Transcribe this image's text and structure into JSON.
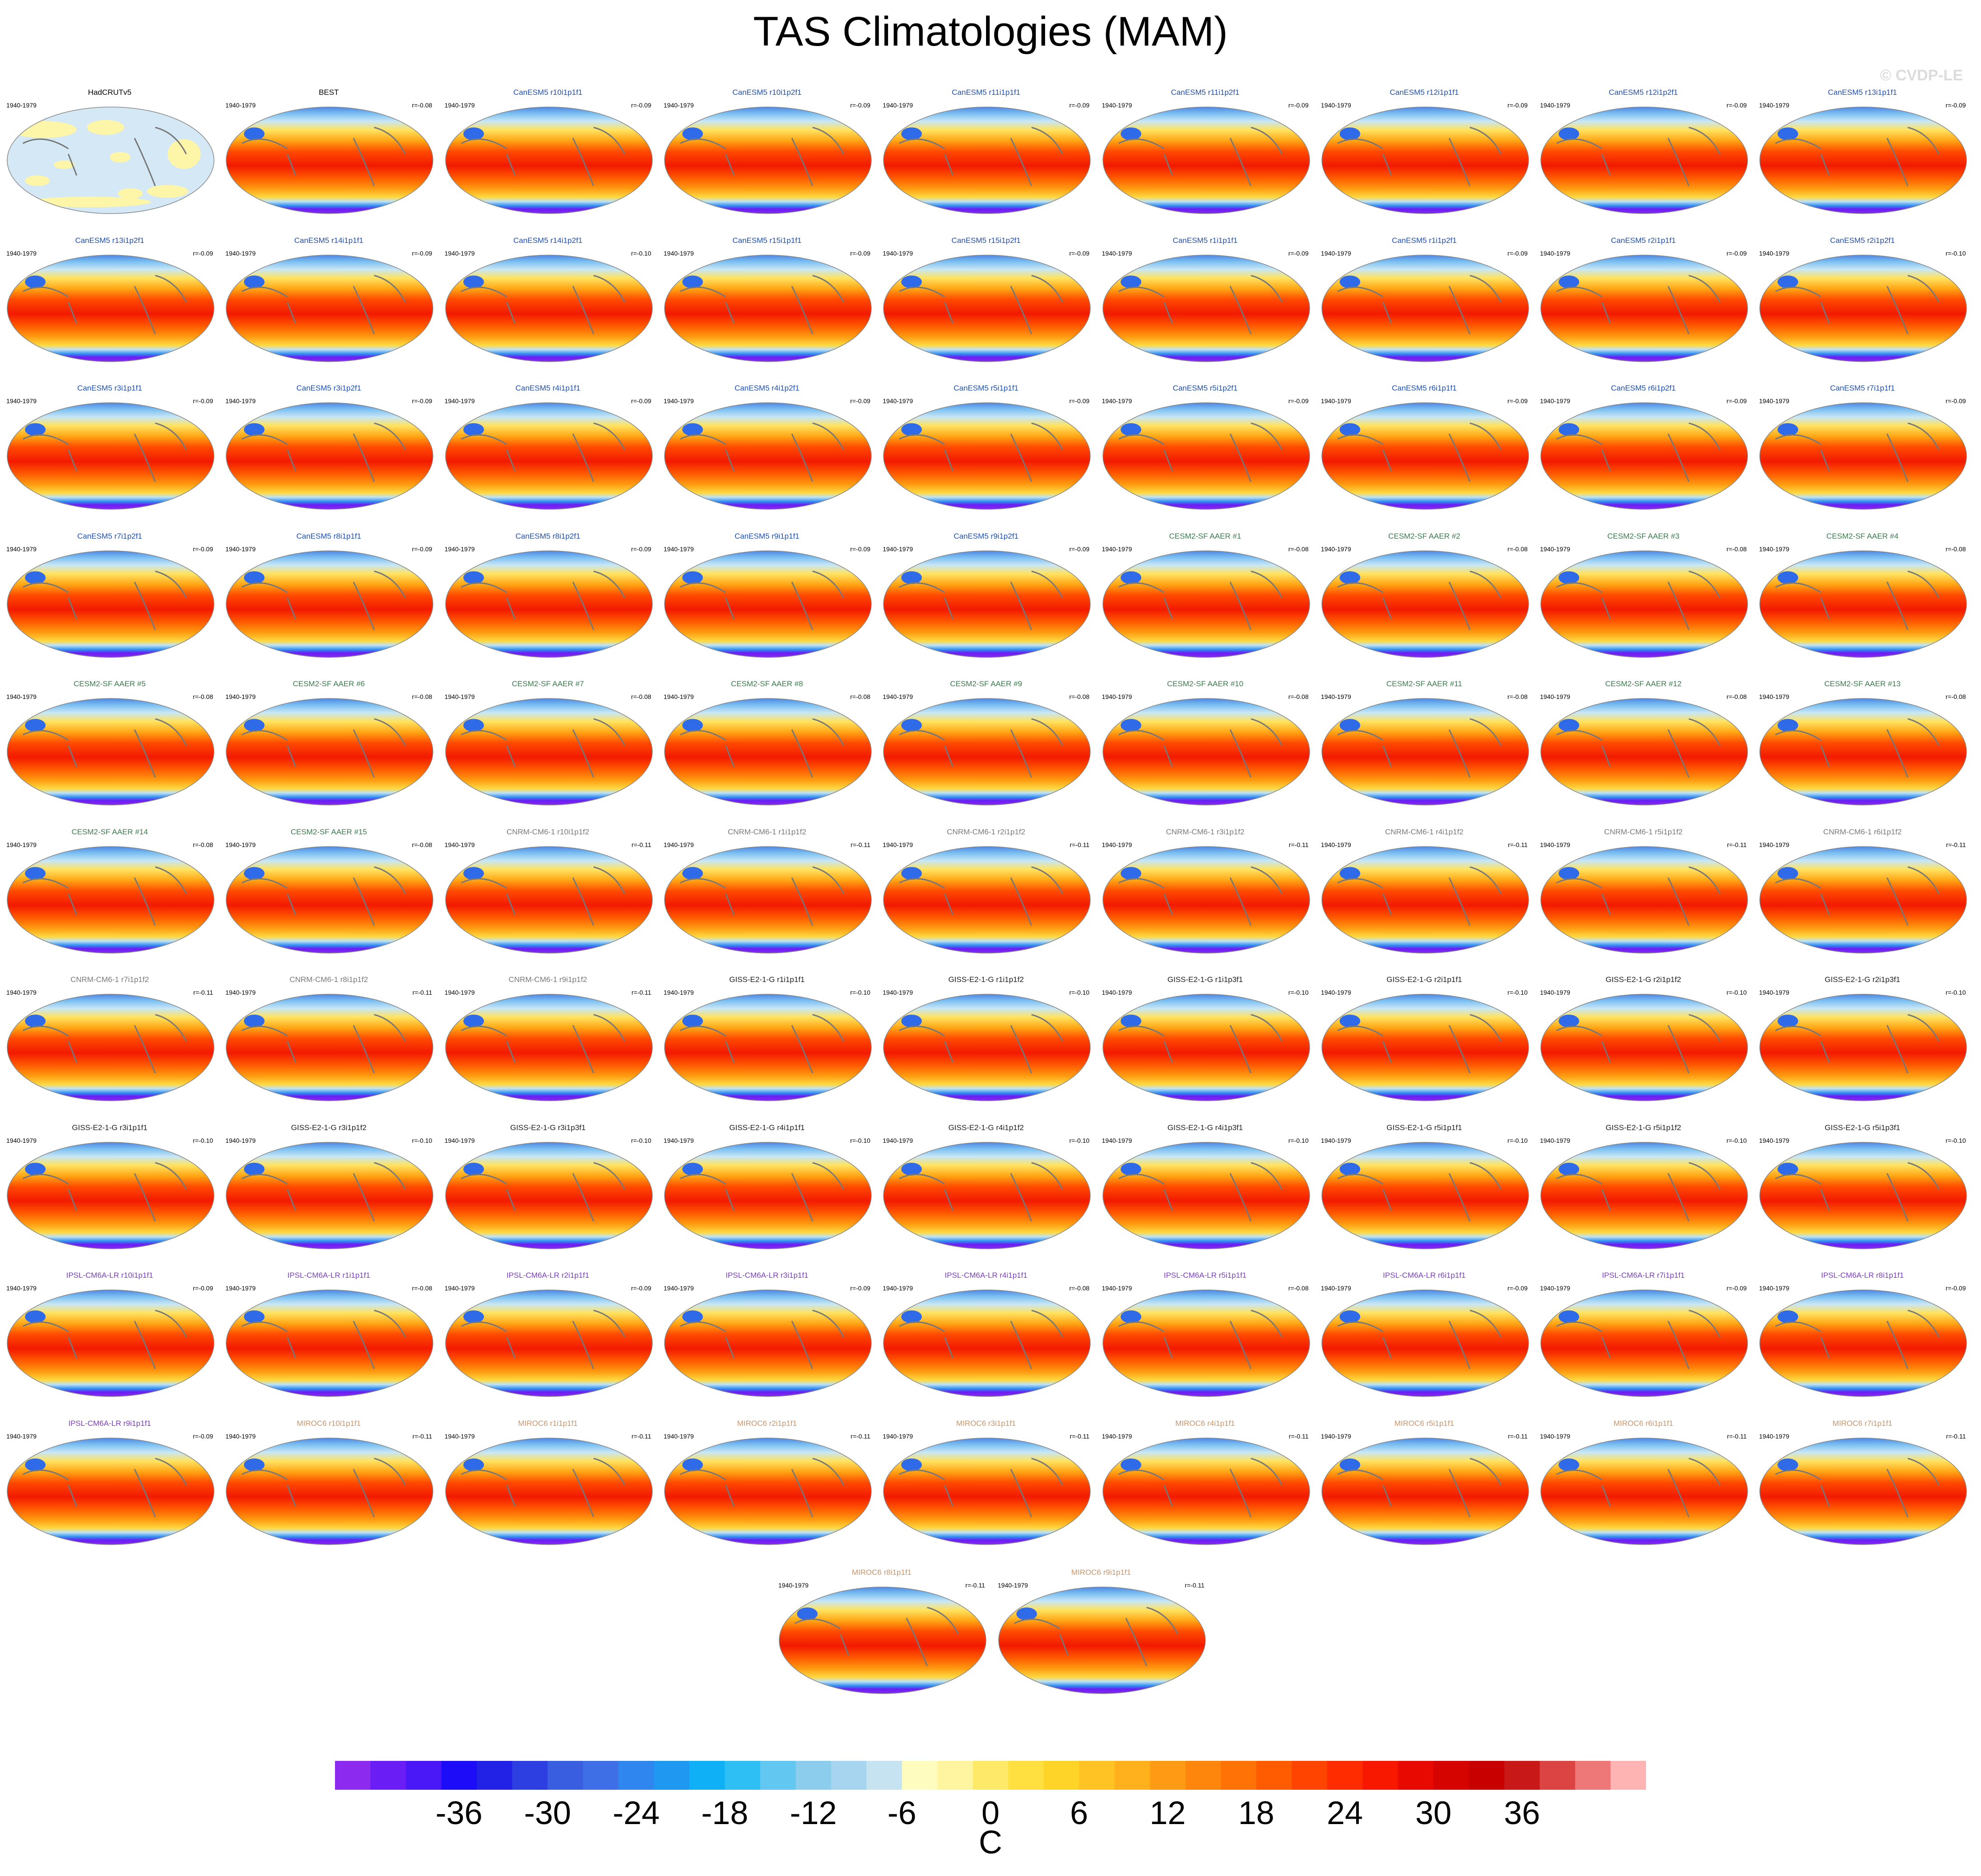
{
  "title": "TAS Climatologies (MAM)",
  "watermark": "© CVDP-LE",
  "panels": [
    {
      "name": "HadCRUTv5",
      "period": "1940-1979",
      "r": "",
      "color": "#000000",
      "kind": "obs"
    },
    {
      "name": "BEST",
      "period": "1940-1979",
      "r": "r=-0.08",
      "color": "#000000",
      "kind": "model"
    },
    {
      "name": "CanESM5 r10i1p1f1",
      "period": "1940-1979",
      "r": "r=-0.09",
      "color": "#1f4fb0",
      "kind": "model"
    },
    {
      "name": "CanESM5 r10i1p2f1",
      "period": "1940-1979",
      "r": "r=-0.09",
      "color": "#1f4fb0",
      "kind": "model"
    },
    {
      "name": "CanESM5 r11i1p1f1",
      "period": "1940-1979",
      "r": "r=-0.09",
      "color": "#1f4fb0",
      "kind": "model"
    },
    {
      "name": "CanESM5 r11i1p2f1",
      "period": "1940-1979",
      "r": "r=-0.09",
      "color": "#1f4fb0",
      "kind": "model"
    },
    {
      "name": "CanESM5 r12i1p1f1",
      "period": "1940-1979",
      "r": "r=-0.09",
      "color": "#1f4fb0",
      "kind": "model"
    },
    {
      "name": "CanESM5 r12i1p2f1",
      "period": "1940-1979",
      "r": "r=-0.09",
      "color": "#1f4fb0",
      "kind": "model"
    },
    {
      "name": "CanESM5 r13i1p1f1",
      "period": "1940-1979",
      "r": "r=-0.09",
      "color": "#1f4fb0",
      "kind": "model"
    },
    {
      "name": "CanESM5 r13i1p2f1",
      "period": "1940-1979",
      "r": "r=-0.09",
      "color": "#1f4fb0",
      "kind": "model"
    },
    {
      "name": "CanESM5 r14i1p1f1",
      "period": "1940-1979",
      "r": "r=-0.09",
      "color": "#1f4fb0",
      "kind": "model"
    },
    {
      "name": "CanESM5 r14i1p2f1",
      "period": "1940-1979",
      "r": "r=-0.10",
      "color": "#1f4fb0",
      "kind": "model"
    },
    {
      "name": "CanESM5 r15i1p1f1",
      "period": "1940-1979",
      "r": "r=-0.09",
      "color": "#1f4fb0",
      "kind": "model"
    },
    {
      "name": "CanESM5 r15i1p2f1",
      "period": "1940-1979",
      "r": "r=-0.09",
      "color": "#1f4fb0",
      "kind": "model"
    },
    {
      "name": "CanESM5 r1i1p1f1",
      "period": "1940-1979",
      "r": "r=-0.09",
      "color": "#1f4fb0",
      "kind": "model"
    },
    {
      "name": "CanESM5 r1i1p2f1",
      "period": "1940-1979",
      "r": "r=-0.09",
      "color": "#1f4fb0",
      "kind": "model"
    },
    {
      "name": "CanESM5 r2i1p1f1",
      "period": "1940-1979",
      "r": "r=-0.09",
      "color": "#1f4fb0",
      "kind": "model"
    },
    {
      "name": "CanESM5 r2i1p2f1",
      "period": "1940-1979",
      "r": "r=-0.10",
      "color": "#1f4fb0",
      "kind": "model"
    },
    {
      "name": "CanESM5 r3i1p1f1",
      "period": "1940-1979",
      "r": "r=-0.09",
      "color": "#1f4fb0",
      "kind": "model"
    },
    {
      "name": "CanESM5 r3i1p2f1",
      "period": "1940-1979",
      "r": "r=-0.09",
      "color": "#1f4fb0",
      "kind": "model"
    },
    {
      "name": "CanESM5 r4i1p1f1",
      "period": "1940-1979",
      "r": "r=-0.09",
      "color": "#1f4fb0",
      "kind": "model"
    },
    {
      "name": "CanESM5 r4i1p2f1",
      "period": "1940-1979",
      "r": "r=-0.09",
      "color": "#1f4fb0",
      "kind": "model"
    },
    {
      "name": "CanESM5 r5i1p1f1",
      "period": "1940-1979",
      "r": "r=-0.09",
      "color": "#1f4fb0",
      "kind": "model"
    },
    {
      "name": "CanESM5 r5i1p2f1",
      "period": "1940-1979",
      "r": "r=-0.09",
      "color": "#1f4fb0",
      "kind": "model"
    },
    {
      "name": "CanESM5 r6i1p1f1",
      "period": "1940-1979",
      "r": "r=-0.09",
      "color": "#1f4fb0",
      "kind": "model"
    },
    {
      "name": "CanESM5 r6i1p2f1",
      "period": "1940-1979",
      "r": "r=-0.09",
      "color": "#1f4fb0",
      "kind": "model"
    },
    {
      "name": "CanESM5 r7i1p1f1",
      "period": "1940-1979",
      "r": "r=-0.09",
      "color": "#1f4fb0",
      "kind": "model"
    },
    {
      "name": "CanESM5 r7i1p2f1",
      "period": "1940-1979",
      "r": "r=-0.09",
      "color": "#1f4fb0",
      "kind": "model"
    },
    {
      "name": "CanESM5 r8i1p1f1",
      "period": "1940-1979",
      "r": "r=-0.09",
      "color": "#1f4fb0",
      "kind": "model"
    },
    {
      "name": "CanESM5 r8i1p2f1",
      "period": "1940-1979",
      "r": "r=-0.09",
      "color": "#1f4fb0",
      "kind": "model"
    },
    {
      "name": "CanESM5 r9i1p1f1",
      "period": "1940-1979",
      "r": "r=-0.09",
      "color": "#1f4fb0",
      "kind": "model"
    },
    {
      "name": "CanESM5 r9i1p2f1",
      "period": "1940-1979",
      "r": "r=-0.09",
      "color": "#1f4fb0",
      "kind": "model"
    },
    {
      "name": "CESM2-SF AAER #1",
      "period": "1940-1979",
      "r": "r=-0.08",
      "color": "#3c7a4e",
      "kind": "model"
    },
    {
      "name": "CESM2-SF AAER #2",
      "period": "1940-1979",
      "r": "r=-0.08",
      "color": "#3c7a4e",
      "kind": "model"
    },
    {
      "name": "CESM2-SF AAER #3",
      "period": "1940-1979",
      "r": "r=-0.08",
      "color": "#3c7a4e",
      "kind": "model"
    },
    {
      "name": "CESM2-SF AAER #4",
      "period": "1940-1979",
      "r": "r=-0.08",
      "color": "#3c7a4e",
      "kind": "model"
    },
    {
      "name": "CESM2-SF AAER #5",
      "period": "1940-1979",
      "r": "r=-0.08",
      "color": "#3c7a4e",
      "kind": "model"
    },
    {
      "name": "CESM2-SF AAER #6",
      "period": "1940-1979",
      "r": "r=-0.08",
      "color": "#3c7a4e",
      "kind": "model"
    },
    {
      "name": "CESM2-SF AAER #7",
      "period": "1940-1979",
      "r": "r=-0.08",
      "color": "#3c7a4e",
      "kind": "model"
    },
    {
      "name": "CESM2-SF AAER #8",
      "period": "1940-1979",
      "r": "r=-0.08",
      "color": "#3c7a4e",
      "kind": "model"
    },
    {
      "name": "CESM2-SF AAER #9",
      "period": "1940-1979",
      "r": "r=-0.08",
      "color": "#3c7a4e",
      "kind": "model"
    },
    {
      "name": "CESM2-SF AAER #10",
      "period": "1940-1979",
      "r": "r=-0.08",
      "color": "#3c7a4e",
      "kind": "model"
    },
    {
      "name": "CESM2-SF AAER #11",
      "period": "1940-1979",
      "r": "r=-0.08",
      "color": "#3c7a4e",
      "kind": "model"
    },
    {
      "name": "CESM2-SF AAER #12",
      "period": "1940-1979",
      "r": "r=-0.08",
      "color": "#3c7a4e",
      "kind": "model"
    },
    {
      "name": "CESM2-SF AAER #13",
      "period": "1940-1979",
      "r": "r=-0.08",
      "color": "#3c7a4e",
      "kind": "model"
    },
    {
      "name": "CESM2-SF AAER #14",
      "period": "1940-1979",
      "r": "r=-0.08",
      "color": "#3c7a4e",
      "kind": "model"
    },
    {
      "name": "CESM2-SF AAER #15",
      "period": "1940-1979",
      "r": "r=-0.08",
      "color": "#3c7a4e",
      "kind": "model"
    },
    {
      "name": "CNRM-CM6-1 r10i1p1f2",
      "period": "1940-1979",
      "r": "r=-0.11",
      "color": "#7a7a7a",
      "kind": "model"
    },
    {
      "name": "CNRM-CM6-1 r1i1p1f2",
      "period": "1940-1979",
      "r": "r=-0.11",
      "color": "#7a7a7a",
      "kind": "model"
    },
    {
      "name": "CNRM-CM6-1 r2i1p1f2",
      "period": "1940-1979",
      "r": "r=-0.11",
      "color": "#7a7a7a",
      "kind": "model"
    },
    {
      "name": "CNRM-CM6-1 r3i1p1f2",
      "period": "1940-1979",
      "r": "r=-0.11",
      "color": "#7a7a7a",
      "kind": "model"
    },
    {
      "name": "CNRM-CM6-1 r4i1p1f2",
      "period": "1940-1979",
      "r": "r=-0.11",
      "color": "#7a7a7a",
      "kind": "model"
    },
    {
      "name": "CNRM-CM6-1 r5i1p1f2",
      "period": "1940-1979",
      "r": "r=-0.11",
      "color": "#7a7a7a",
      "kind": "model"
    },
    {
      "name": "CNRM-CM6-1 r6i1p1f2",
      "period": "1940-1979",
      "r": "r=-0.11",
      "color": "#7a7a7a",
      "kind": "model"
    },
    {
      "name": "CNRM-CM6-1 r7i1p1f2",
      "period": "1940-1979",
      "r": "r=-0.11",
      "color": "#7a7a7a",
      "kind": "model"
    },
    {
      "name": "CNRM-CM6-1 r8i1p1f2",
      "period": "1940-1979",
      "r": "r=-0.11",
      "color": "#7a7a7a",
      "kind": "model"
    },
    {
      "name": "CNRM-CM6-1 r9i1p1f2",
      "period": "1940-1979",
      "r": "r=-0.11",
      "color": "#7a7a7a",
      "kind": "model"
    },
    {
      "name": "GISS-E2-1-G r1i1p1f1",
      "period": "1940-1979",
      "r": "r=-0.10",
      "color": "#222222",
      "kind": "model"
    },
    {
      "name": "GISS-E2-1-G r1i1p1f2",
      "period": "1940-1979",
      "r": "r=-0.10",
      "color": "#222222",
      "kind": "model"
    },
    {
      "name": "GISS-E2-1-G r1i1p3f1",
      "period": "1940-1979",
      "r": "r=-0.10",
      "color": "#222222",
      "kind": "model"
    },
    {
      "name": "GISS-E2-1-G r2i1p1f1",
      "period": "1940-1979",
      "r": "r=-0.10",
      "color": "#222222",
      "kind": "model"
    },
    {
      "name": "GISS-E2-1-G r2i1p1f2",
      "period": "1940-1979",
      "r": "r=-0.10",
      "color": "#222222",
      "kind": "model"
    },
    {
      "name": "GISS-E2-1-G r2i1p3f1",
      "period": "1940-1979",
      "r": "r=-0.10",
      "color": "#222222",
      "kind": "model"
    },
    {
      "name": "GISS-E2-1-G r3i1p1f1",
      "period": "1940-1979",
      "r": "r=-0.10",
      "color": "#222222",
      "kind": "model"
    },
    {
      "name": "GISS-E2-1-G r3i1p1f2",
      "period": "1940-1979",
      "r": "r=-0.10",
      "color": "#222222",
      "kind": "model"
    },
    {
      "name": "GISS-E2-1-G r3i1p3f1",
      "period": "1940-1979",
      "r": "r=-0.10",
      "color": "#222222",
      "kind": "model"
    },
    {
      "name": "GISS-E2-1-G r4i1p1f1",
      "period": "1940-1979",
      "r": "r=-0.10",
      "color": "#222222",
      "kind": "model"
    },
    {
      "name": "GISS-E2-1-G r4i1p1f2",
      "period": "1940-1979",
      "r": "r=-0.10",
      "color": "#222222",
      "kind": "model"
    },
    {
      "name": "GISS-E2-1-G r4i1p3f1",
      "period": "1940-1979",
      "r": "r=-0.10",
      "color": "#222222",
      "kind": "model"
    },
    {
      "name": "GISS-E2-1-G r5i1p1f1",
      "period": "1940-1979",
      "r": "r=-0.10",
      "color": "#222222",
      "kind": "model"
    },
    {
      "name": "GISS-E2-1-G r5i1p1f2",
      "period": "1940-1979",
      "r": "r=-0.10",
      "color": "#222222",
      "kind": "model"
    },
    {
      "name": "GISS-E2-1-G r5i1p3f1",
      "period": "1940-1979",
      "r": "r=-0.10",
      "color": "#222222",
      "kind": "model"
    },
    {
      "name": "IPSL-CM6A-LR r10i1p1f1",
      "period": "1940-1979",
      "r": "r=-0.09",
      "color": "#7b3fbf",
      "kind": "model"
    },
    {
      "name": "IPSL-CM6A-LR r1i1p1f1",
      "period": "1940-1979",
      "r": "r=-0.08",
      "color": "#7b3fbf",
      "kind": "model"
    },
    {
      "name": "IPSL-CM6A-LR r2i1p1f1",
      "period": "1940-1979",
      "r": "r=-0.09",
      "color": "#7b3fbf",
      "kind": "model"
    },
    {
      "name": "IPSL-CM6A-LR r3i1p1f1",
      "period": "1940-1979",
      "r": "r=-0.09",
      "color": "#7b3fbf",
      "kind": "model"
    },
    {
      "name": "IPSL-CM6A-LR r4i1p1f1",
      "period": "1940-1979",
      "r": "r=-0.08",
      "color": "#7b3fbf",
      "kind": "model"
    },
    {
      "name": "IPSL-CM6A-LR r5i1p1f1",
      "period": "1940-1979",
      "r": "r=-0.08",
      "color": "#7b3fbf",
      "kind": "model"
    },
    {
      "name": "IPSL-CM6A-LR r6i1p1f1",
      "period": "1940-1979",
      "r": "r=-0.09",
      "color": "#7b3fbf",
      "kind": "model"
    },
    {
      "name": "IPSL-CM6A-LR r7i1p1f1",
      "period": "1940-1979",
      "r": "r=-0.09",
      "color": "#7b3fbf",
      "kind": "model"
    },
    {
      "name": "IPSL-CM6A-LR r8i1p1f1",
      "period": "1940-1979",
      "r": "r=-0.09",
      "color": "#7b3fbf",
      "kind": "model"
    },
    {
      "name": "IPSL-CM6A-LR r9i1p1f1",
      "period": "1940-1979",
      "r": "r=-0.09",
      "color": "#7b3fbf",
      "kind": "model"
    },
    {
      "name": "MIROC6 r10i1p1f1",
      "period": "1940-1979",
      "r": "r=-0.11",
      "color": "#c9956b",
      "kind": "model"
    },
    {
      "name": "MIROC6 r1i1p1f1",
      "period": "1940-1979",
      "r": "r=-0.11",
      "color": "#c9956b",
      "kind": "model"
    },
    {
      "name": "MIROC6 r2i1p1f1",
      "period": "1940-1979",
      "r": "r=-0.11",
      "color": "#c9956b",
      "kind": "model"
    },
    {
      "name": "MIROC6 r3i1p1f1",
      "period": "1940-1979",
      "r": "r=-0.11",
      "color": "#c9956b",
      "kind": "model"
    },
    {
      "name": "MIROC6 r4i1p1f1",
      "period": "1940-1979",
      "r": "r=-0.11",
      "color": "#c9956b",
      "kind": "model"
    },
    {
      "name": "MIROC6 r5i1p1f1",
      "period": "1940-1979",
      "r": "r=-0.11",
      "color": "#c9956b",
      "kind": "model"
    },
    {
      "name": "MIROC6 r6i1p1f1",
      "period": "1940-1979",
      "r": "r=-0.11",
      "color": "#c9956b",
      "kind": "model"
    },
    {
      "name": "MIROC6 r7i1p1f1",
      "period": "1940-1979",
      "r": "r=-0.11",
      "color": "#c9956b",
      "kind": "model"
    },
    {
      "name": "MIROC6 r8i1p1f1",
      "period": "1940-1979",
      "r": "r=-0.11",
      "color": "#c9956b",
      "kind": "model"
    },
    {
      "name": "MIROC6 r9i1p1f1",
      "period": "1940-1979",
      "r": "r=-0.11",
      "color": "#c9956b",
      "kind": "model"
    }
  ],
  "colorbar": {
    "colors": [
      "#8c2bef",
      "#6a1ef5",
      "#4a18f7",
      "#1c0cf7",
      "#2222e6",
      "#2d3fe0",
      "#3a5ee0",
      "#3f6fe6",
      "#2f86ee",
      "#1f98f2",
      "#0fb0f5",
      "#2ec0f5",
      "#62c8f2",
      "#8ccdee",
      "#a7d5ef",
      "#c6e3f2",
      "#fffcc0",
      "#fff5a0",
      "#ffe968",
      "#ffe040",
      "#ffd428",
      "#ffc424",
      "#ffb01c",
      "#ff9a14",
      "#ff860c",
      "#ff7206",
      "#ff5c02",
      "#ff4400",
      "#ff2c00",
      "#f81800",
      "#e80a00",
      "#d60400",
      "#c80000",
      "#c81818",
      "#dc4444",
      "#ee7878",
      "#ffb4b4"
    ],
    "tick_labels": [
      "-36",
      "-30",
      "-24",
      "-18",
      "-12",
      "-6",
      "0",
      "6",
      "12",
      "18",
      "24",
      "30",
      "36"
    ],
    "units": "C"
  }
}
